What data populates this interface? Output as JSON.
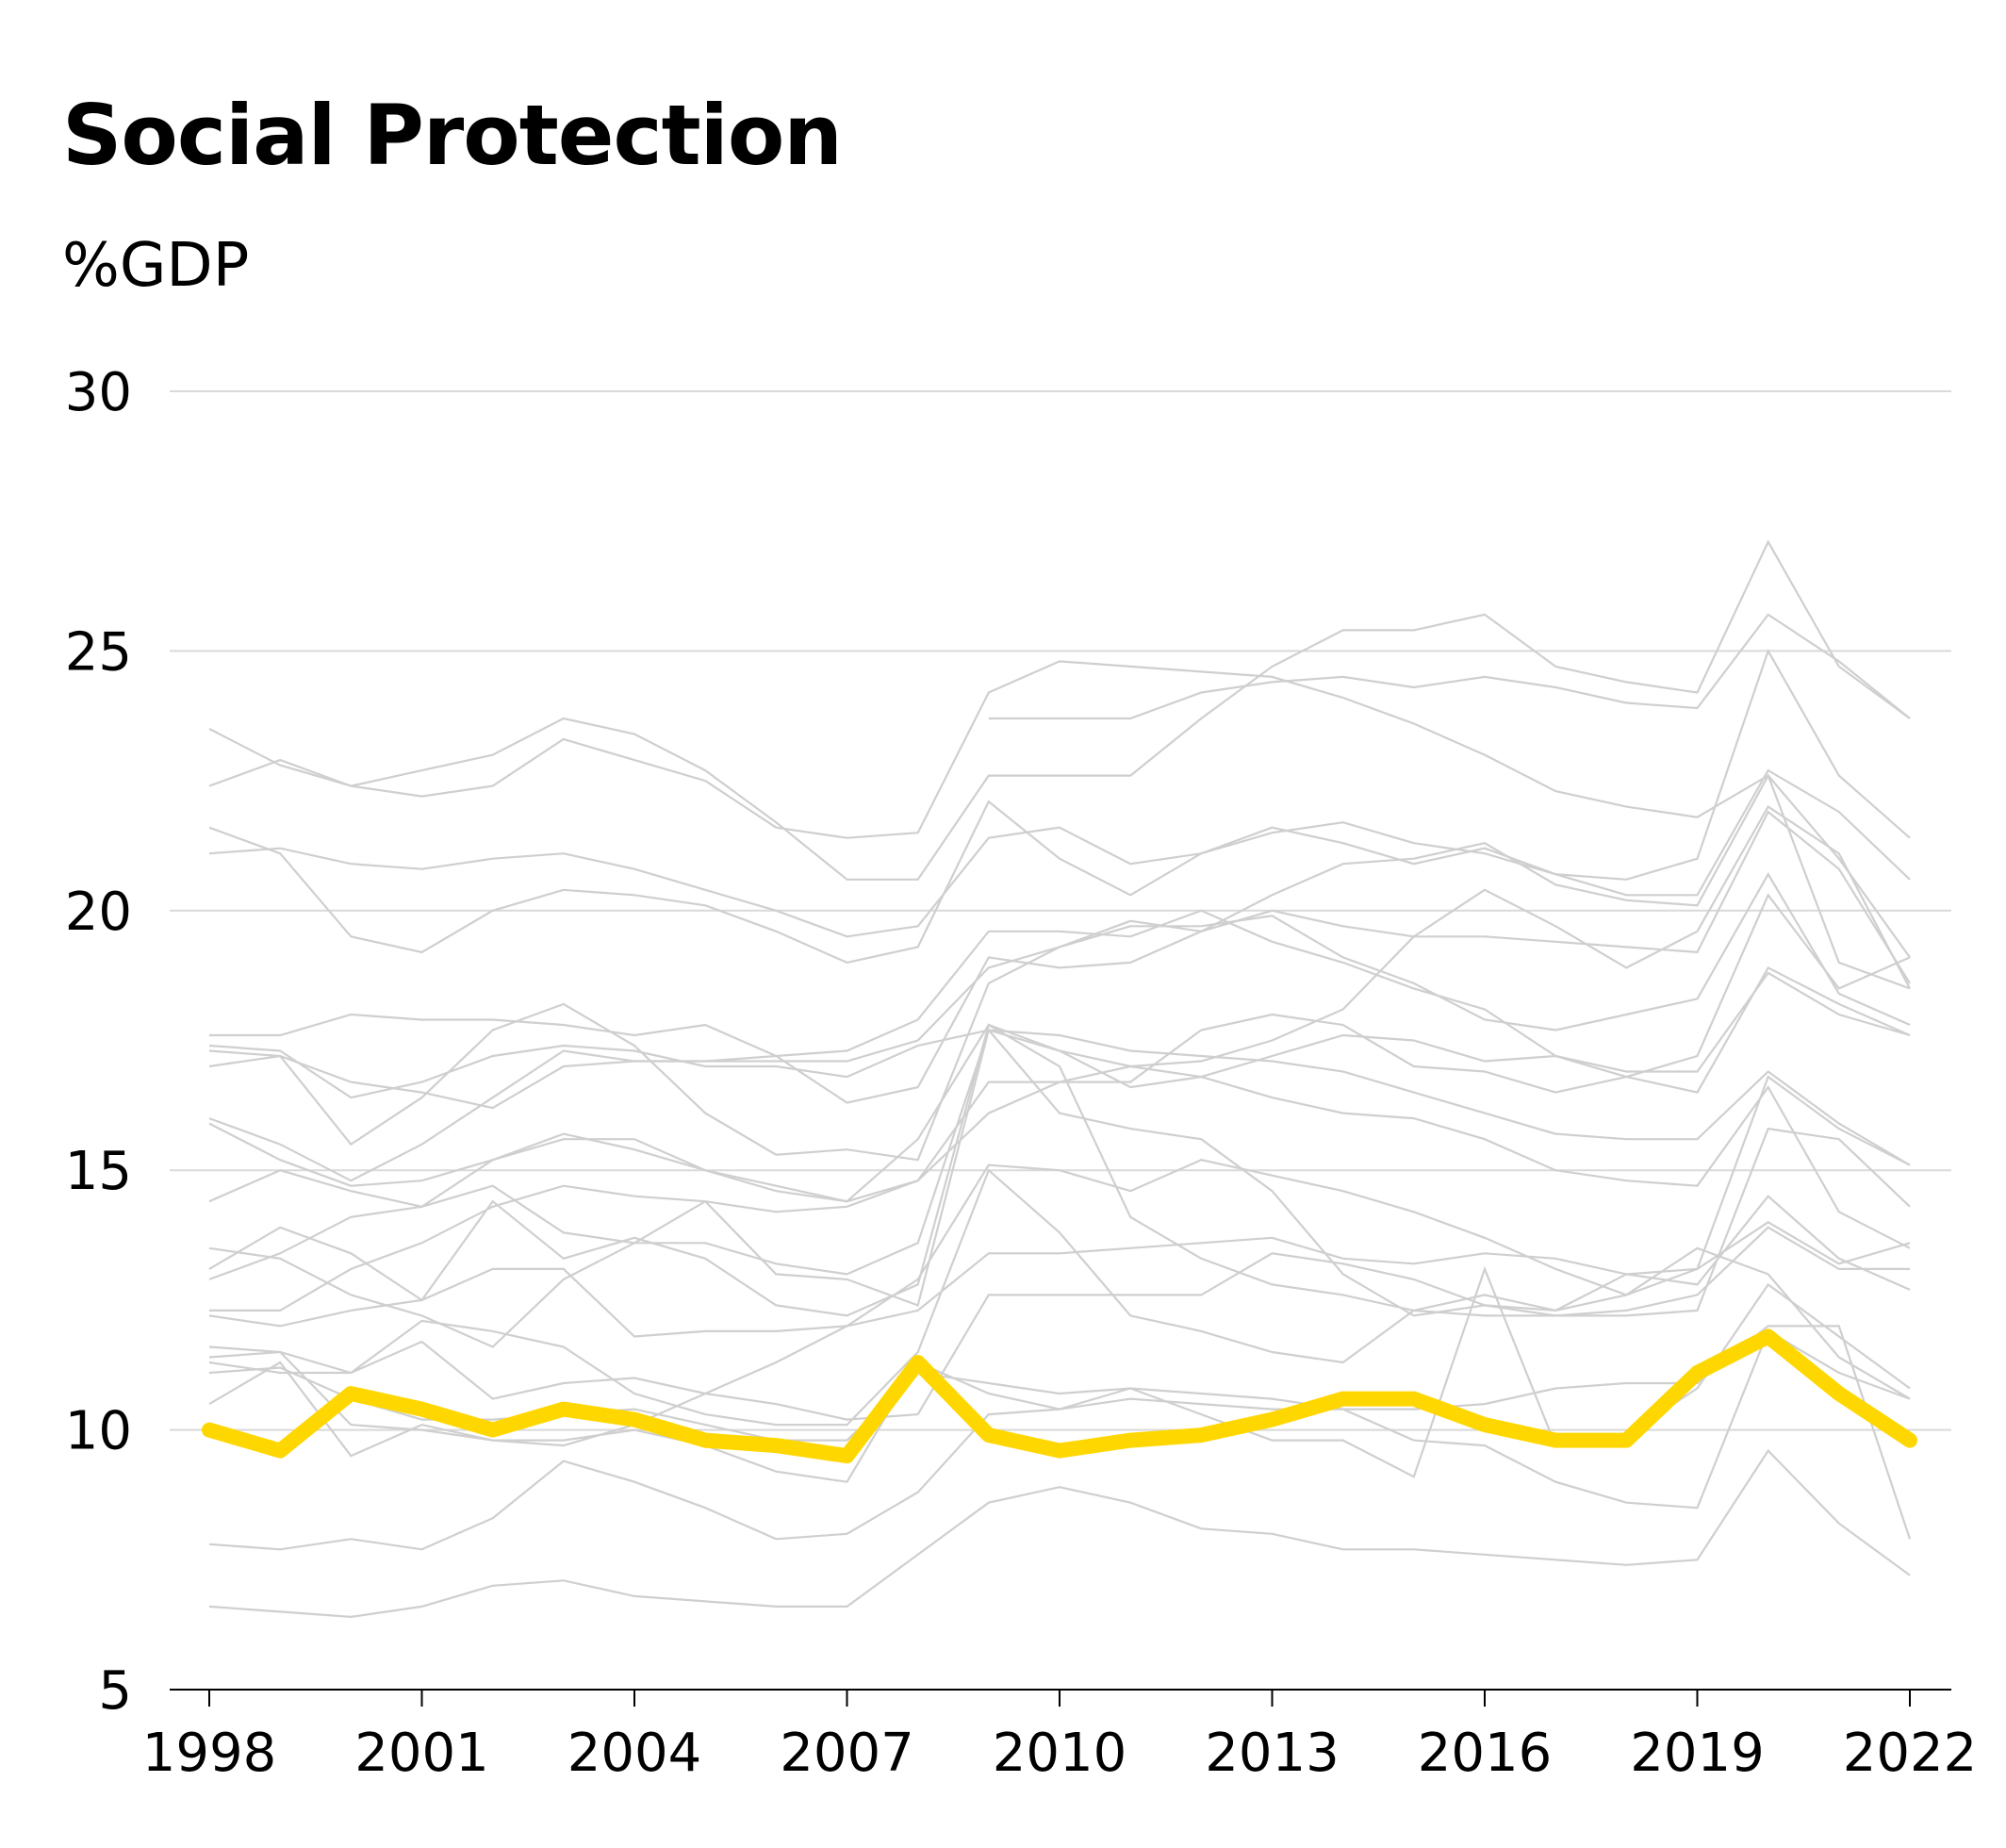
{
  "chart_data": {
    "type": "line",
    "title": "Social Protection",
    "ylabel": "%GDP",
    "xlabel": "",
    "x": [
      1998,
      1999,
      2000,
      2001,
      2002,
      2003,
      2004,
      2005,
      2006,
      2007,
      2008,
      2009,
      2010,
      2011,
      2012,
      2013,
      2014,
      2015,
      2016,
      2017,
      2018,
      2019,
      2020,
      2021,
      2022
    ],
    "xticks": [
      1998,
      2001,
      2004,
      2007,
      2010,
      2013,
      2016,
      2019,
      2022
    ],
    "yticks": [
      5,
      10,
      15,
      20,
      25,
      30
    ],
    "ylim": [
      5,
      30
    ],
    "xlim": [
      1998,
      2022
    ],
    "grid": true,
    "colors": {
      "highlight": "#ffd700",
      "context": "#cfcfcf",
      "grid": "#d9d9d9",
      "axis": "#000000"
    },
    "highlight": [
      10.0,
      9.6,
      10.7,
      10.4,
      10.0,
      10.4,
      10.2,
      9.8,
      9.7,
      9.5,
      11.3,
      9.9,
      9.6,
      9.8,
      9.9,
      10.2,
      10.6,
      10.6,
      10.1,
      9.8,
      9.8,
      11.1,
      11.8,
      10.7,
      9.8
    ],
    "series": [
      [
        null,
        null,
        null,
        null,
        null,
        null,
        null,
        null,
        null,
        null,
        null,
        23.7,
        23.7,
        23.7,
        24.2,
        24.4,
        24.5,
        24.3,
        24.5,
        24.3,
        24.0,
        23.9,
        25.7,
        24.8,
        23.7
      ],
      [
        23.5,
        22.8,
        22.4,
        22.2,
        22.4,
        23.3,
        22.9,
        22.5,
        21.6,
        21.4,
        21.5,
        24.2,
        24.8,
        24.7,
        24.6,
        24.5,
        24.1,
        23.6,
        23.0,
        22.3,
        22.0,
        21.8,
        22.6,
        19.0,
        18.5
      ],
      [
        22.4,
        22.9,
        22.4,
        22.7,
        23.0,
        23.7,
        23.4,
        22.7,
        21.7,
        20.6,
        20.6,
        22.6,
        22.6,
        22.6,
        23.7,
        24.7,
        25.4,
        25.4,
        25.7,
        24.7,
        24.4,
        24.2,
        27.1,
        24.7,
        23.7
      ],
      [
        21.1,
        21.2,
        20.9,
        20.8,
        21.0,
        21.1,
        20.8,
        20.4,
        20.0,
        19.5,
        19.7,
        21.4,
        21.6,
        20.9,
        21.1,
        21.5,
        21.7,
        21.3,
        21.1,
        20.7,
        20.6,
        21.0,
        25.0,
        22.6,
        21.4
      ],
      [
        21.6,
        21.1,
        19.5,
        19.2,
        20.0,
        20.4,
        20.3,
        20.1,
        19.6,
        19.0,
        19.3,
        22.1,
        21.0,
        20.3,
        21.1,
        21.6,
        21.3,
        20.9,
        21.2,
        20.7,
        20.3,
        20.3,
        22.7,
        21.9,
        20.6
      ],
      [
        17.3,
        17.2,
        15.5,
        16.4,
        17.7,
        18.2,
        17.4,
        16.1,
        15.3,
        15.4,
        15.2,
        18.6,
        19.3,
        19.8,
        19.6,
        20.3,
        20.9,
        21.0,
        21.3,
        20.5,
        20.2,
        20.1,
        22.6,
        21.0,
        19.1
      ],
      [
        17.6,
        17.6,
        18.0,
        17.9,
        17.9,
        17.8,
        17.6,
        17.8,
        17.2,
        16.3,
        16.6,
        19.1,
        18.9,
        19.0,
        19.6,
        20.0,
        19.7,
        19.5,
        19.5,
        19.4,
        19.3,
        19.2,
        21.9,
        20.8,
        18.6
      ],
      [
        17.0,
        17.2,
        16.7,
        16.5,
        16.2,
        17.0,
        17.1,
        17.1,
        17.2,
        17.3,
        17.9,
        19.6,
        19.6,
        19.5,
        20.0,
        19.4,
        19.0,
        18.5,
        18.1,
        17.2,
        16.8,
        17.2,
        20.3,
        18.5,
        19.1
      ],
      [
        17.4,
        17.3,
        16.4,
        16.7,
        17.2,
        17.4,
        17.3,
        17.0,
        17.0,
        16.8,
        17.4,
        17.7,
        17.3,
        17.0,
        17.1,
        17.5,
        18.1,
        19.5,
        20.4,
        19.7,
        18.9,
        19.6,
        22.0,
        21.1,
        18.5
      ],
      [
        16.0,
        15.5,
        14.8,
        15.5,
        16.4,
        17.3,
        17.1,
        17.1,
        17.1,
        17.1,
        17.5,
        18.9,
        19.3,
        19.7,
        19.7,
        19.9,
        19.1,
        18.6,
        17.9,
        17.7,
        18.0,
        18.3,
        20.7,
        18.4,
        17.8
      ],
      [
        15.9,
        15.2,
        14.7,
        14.8,
        15.2,
        15.6,
        15.6,
        15.0,
        14.7,
        14.4,
        14.8,
        16.7,
        16.7,
        16.7,
        17.7,
        18.0,
        17.8,
        17.0,
        16.9,
        16.5,
        16.8,
        16.5,
        18.9,
        18.2,
        17.6
      ],
      [
        14.4,
        15.0,
        14.6,
        14.3,
        15.2,
        15.7,
        15.4,
        15.0,
        14.6,
        14.4,
        15.6,
        17.8,
        17.3,
        16.6,
        16.8,
        17.2,
        17.6,
        17.5,
        17.1,
        17.2,
        16.9,
        16.9,
        18.8,
        18.0,
        17.6
      ],
      [
        13.5,
        13.3,
        12.6,
        12.2,
        11.6,
        12.9,
        13.6,
        13.6,
        13.2,
        13.0,
        13.6,
        17.7,
        17.6,
        17.3,
        17.2,
        17.1,
        16.9,
        16.5,
        16.1,
        15.7,
        15.6,
        15.6,
        16.9,
        15.9,
        15.1
      ],
      [
        12.3,
        12.3,
        13.1,
        13.6,
        14.3,
        14.7,
        14.5,
        14.4,
        14.2,
        14.3,
        14.8,
        16.1,
        16.7,
        17.0,
        16.8,
        16.4,
        16.1,
        16.0,
        15.6,
        15.0,
        14.8,
        14.7,
        16.6,
        14.2,
        13.5
      ],
      [
        12.9,
        13.4,
        14.1,
        14.3,
        14.7,
        13.8,
        13.6,
        14.4,
        13.0,
        12.9,
        12.4,
        17.7,
        16.1,
        15.8,
        15.6,
        14.6,
        13.0,
        12.2,
        12.4,
        12.3,
        12.6,
        13.1,
        16.8,
        15.8,
        15.1
      ],
      [
        13.1,
        13.9,
        13.4,
        12.5,
        14.4,
        13.3,
        13.7,
        13.3,
        12.4,
        12.2,
        12.8,
        17.8,
        17.0,
        14.1,
        13.3,
        12.8,
        12.6,
        12.3,
        12.6,
        12.3,
        13.0,
        13.1,
        14.0,
        13.2,
        13.6
      ],
      [
        12.2,
        12.0,
        12.3,
        12.5,
        13.1,
        13.1,
        11.8,
        11.9,
        11.9,
        12.0,
        12.3,
        13.4,
        13.4,
        13.5,
        13.6,
        13.7,
        13.3,
        13.2,
        13.4,
        13.3,
        13.0,
        12.8,
        14.5,
        13.3,
        12.7
      ],
      [
        11.6,
        11.5,
        11.1,
        11.7,
        10.6,
        10.9,
        11.0,
        10.7,
        10.5,
        10.2,
        10.3,
        12.6,
        12.6,
        12.6,
        12.6,
        13.4,
        13.2,
        12.9,
        12.4,
        12.2,
        12.2,
        12.3,
        15.8,
        15.6,
        14.3
      ],
      [
        11.3,
        11.1,
        11.1,
        12.1,
        11.9,
        11.6,
        10.7,
        10.3,
        10.1,
        10.1,
        11.5,
        15.0,
        13.8,
        12.2,
        11.9,
        11.5,
        11.3,
        12.3,
        12.2,
        12.2,
        12.3,
        12.6,
        13.9,
        13.1,
        13.1
      ],
      [
        10.5,
        11.3,
        9.5,
        10.1,
        9.8,
        9.7,
        10.1,
        10.7,
        11.3,
        12.0,
        12.9,
        15.1,
        15.0,
        14.6,
        15.2,
        14.9,
        14.6,
        14.2,
        13.7,
        13.1,
        12.6,
        13.5,
        13.0,
        11.4,
        10.6
      ],
      [
        11.1,
        11.2,
        10.6,
        10.2,
        10.2,
        10.3,
        10.4,
        10.1,
        9.8,
        9.8,
        11.1,
        10.9,
        10.7,
        10.8,
        10.7,
        10.6,
        10.4,
        10.4,
        10.5,
        10.8,
        10.9,
        10.9,
        12.0,
        12.0,
        7.9
      ],
      [
        11.4,
        11.5,
        10.1,
        10.0,
        9.8,
        9.8,
        10.0,
        9.7,
        9.2,
        9.0,
        11.3,
        10.7,
        10.4,
        10.8,
        10.3,
        9.8,
        9.8,
        9.1,
        13.1,
        9.7,
        9.9,
        10.8,
        12.8,
        11.8,
        10.8
      ],
      [
        7.8,
        7.7,
        7.9,
        7.7,
        8.3,
        9.4,
        9.0,
        8.5,
        7.9,
        8.0,
        8.8,
        10.3,
        10.4,
        10.6,
        10.5,
        10.4,
        10.4,
        9.8,
        9.7,
        9.0,
        8.6,
        8.5,
        11.9,
        11.1,
        10.6
      ],
      [
        6.6,
        6.5,
        6.4,
        6.6,
        7.0,
        7.1,
        6.8,
        6.7,
        6.6,
        6.6,
        7.6,
        8.6,
        8.9,
        8.6,
        8.1,
        8.0,
        7.7,
        7.7,
        7.6,
        7.5,
        7.4,
        7.5,
        9.6,
        8.2,
        7.2
      ]
    ]
  }
}
